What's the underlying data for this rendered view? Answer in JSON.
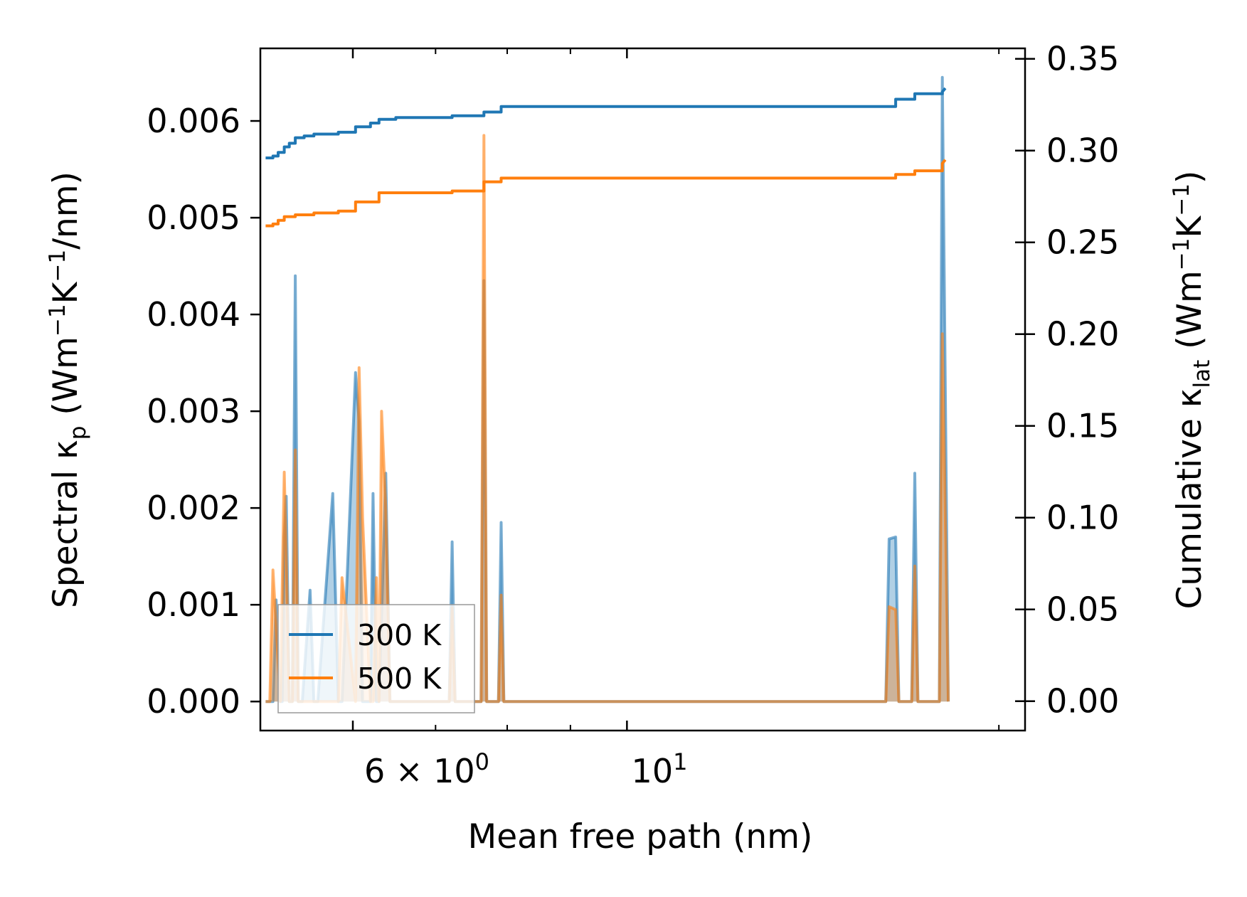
{
  "chart_data": {
    "type": "line",
    "title": "",
    "xlabel": "Mean free path (nm)",
    "xscale": "log",
    "xlim": [
      5.05,
      21.0
    ],
    "x_tick_labels": [
      {
        "value": 6,
        "base": "6 × 10",
        "exp": "0"
      },
      {
        "value": 10,
        "base": "10",
        "exp": "1"
      }
    ],
    "x_minor_ticks": [
      6,
      7,
      8,
      9,
      20
    ],
    "left_axis": {
      "label_parts": [
        "Spectral κ",
        "p",
        " (Wm",
        "−1",
        "K",
        "−1",
        "/nm)"
      ],
      "ylim": [
        -0.0003,
        0.00675
      ],
      "ticks": [
        0.0,
        0.001,
        0.002,
        0.003,
        0.004,
        0.005,
        0.006
      ],
      "tick_labels": [
        "0.000",
        "0.001",
        "0.002",
        "0.003",
        "0.004",
        "0.005",
        "0.006"
      ]
    },
    "right_axis": {
      "label_parts": [
        "Cumulative κ",
        "lat",
        " (Wm",
        "−1",
        "K",
        "−1",
        ")"
      ],
      "ylim": [
        -0.016,
        0.3557
      ],
      "ticks": [
        0.0,
        0.05,
        0.1,
        0.15,
        0.2,
        0.25,
        0.3,
        0.35
      ],
      "tick_labels": [
        "0.00",
        "0.05",
        "0.10",
        "0.15",
        "0.20",
        "0.25",
        "0.30",
        "0.35"
      ]
    },
    "legend": {
      "position": "lower-left",
      "entries": [
        "300 K",
        "500 K"
      ]
    },
    "series": [
      {
        "name": "300 K",
        "color": "#1f77b4",
        "spectral": {
          "x": [
            5.1,
            5.17,
            5.2,
            5.24,
            5.26,
            5.28,
            5.3,
            5.33,
            5.36,
            5.39,
            5.42,
            5.46,
            5.54,
            5.58,
            5.62,
            5.78,
            5.84,
            5.88,
            6.03,
            6.07,
            6.11,
            6.2,
            6.23,
            6.27,
            6.3,
            6.38,
            6.43,
            6.46,
            6.5,
            6.53,
            7.18,
            7.22,
            7.26,
            7.62,
            7.66,
            7.7,
            7.87,
            7.91,
            7.95,
            16.2,
            16.3,
            16.5,
            16.6,
            17.0,
            17.1,
            17.2,
            17.9,
            18.0,
            18.2
          ],
          "y": [
            0,
            0,
            0.00105,
            0,
            0,
            0.0017,
            0.00212,
            0,
            0,
            0.0044,
            0,
            0,
            0.00115,
            0,
            0,
            0.00215,
            0,
            0,
            0.0034,
            0.0029,
            0,
            0,
            0.00215,
            0,
            0,
            0.00236,
            0,
            0,
            0,
            0,
            0,
            0.00165,
            0,
            0,
            0.00435,
            0,
            0,
            0.00185,
            0,
            0,
            0.00168,
            0.0017,
            0,
            0,
            0.00236,
            0,
            0,
            0.00645,
            0
          ]
        },
        "cumulative": {
          "x": [
            5.1,
            5.17,
            5.22,
            5.28,
            5.33,
            5.39,
            5.48,
            5.58,
            5.84,
            6.03,
            6.2,
            6.3,
            6.5,
            7.22,
            7.66,
            7.91,
            16.2,
            16.5,
            17.1,
            18.0
          ],
          "y": [
            0.296,
            0.297,
            0.299,
            0.302,
            0.304,
            0.307,
            0.308,
            0.309,
            0.31,
            0.313,
            0.315,
            0.317,
            0.318,
            0.319,
            0.321,
            0.324,
            0.324,
            0.328,
            0.331,
            0.332
          ]
        }
      },
      {
        "name": "500 K",
        "color": "#ff7f0e",
        "spectral": {
          "x": [
            5.1,
            5.14,
            5.17,
            5.2,
            5.24,
            5.28,
            5.3,
            5.33,
            5.36,
            5.39,
            5.42,
            5.84,
            5.88,
            6.03,
            6.07,
            6.11,
            6.2,
            6.23,
            6.27,
            6.3,
            6.33,
            6.38,
            6.43,
            6.46,
            7.18,
            7.22,
            7.26,
            7.62,
            7.66,
            7.7,
            7.87,
            7.91,
            7.95,
            16.2,
            16.3,
            16.5,
            16.6,
            17.0,
            17.1,
            17.2,
            17.9,
            18.0,
            18.2
          ],
          "y": [
            0,
            0,
            0.00136,
            0.0008,
            0,
            0.00237,
            0.0015,
            0,
            0,
            0.0026,
            0,
            0,
            0.00128,
            0,
            0.00345,
            0.0019,
            0,
            0,
            0.00128,
            0,
            0.003,
            0.002,
            0,
            0,
            0,
            0.00097,
            0,
            0,
            0.00585,
            0,
            0,
            0.0011,
            0,
            0,
            0.00098,
            0.00095,
            0,
            0,
            0.0014,
            0,
            0,
            0.0038,
            0
          ]
        },
        "cumulative": {
          "x": [
            5.1,
            5.17,
            5.22,
            5.28,
            5.39,
            5.58,
            5.84,
            6.03,
            6.3,
            7.22,
            7.66,
            7.91,
            16.2,
            16.5,
            17.1,
            18.0
          ],
          "y": [
            0.259,
            0.26,
            0.262,
            0.264,
            0.265,
            0.266,
            0.267,
            0.272,
            0.277,
            0.278,
            0.283,
            0.285,
            0.285,
            0.287,
            0.289,
            0.293
          ]
        }
      }
    ]
  }
}
